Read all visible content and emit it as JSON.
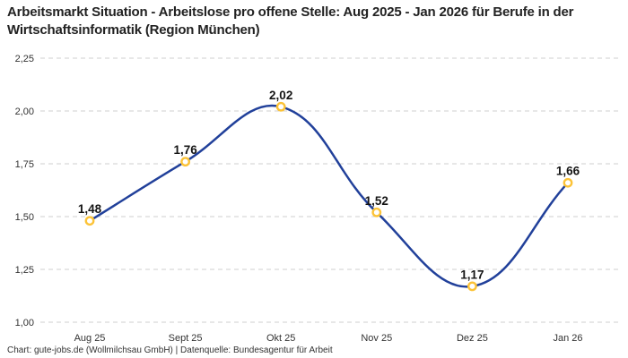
{
  "footer": "Chart: gute-jobs.de (Wollmilchsau GmbH) | Datenquelle: Bundesagentur für Arbeit",
  "colors": {
    "background": "#ffffff",
    "line": "#21409a",
    "marker_ring": "#fcc337",
    "marker_fill": "#ffffff",
    "grid": "#cfcfcf",
    "title_text": "#222222",
    "tick_text": "#333333",
    "data_label_text": "#141414"
  },
  "chart_data": {
    "type": "line",
    "title": "Arbeitsmarkt Situation - Arbeitslose pro offene Stelle: Aug 2025 - Jan 2026 für Berufe in der Wirtschaftsinformatik (Region München)",
    "categories": [
      "Aug 25",
      "Sept 25",
      "Okt 25",
      "Nov 25",
      "Dez 25",
      "Jan 26"
    ],
    "values": [
      1.48,
      1.76,
      2.02,
      1.52,
      1.17,
      1.66
    ],
    "value_labels": [
      "1,48",
      "1,76",
      "2,02",
      "1,52",
      "1,17",
      "1,66"
    ],
    "y_ticks": [
      {
        "value": 2.25,
        "label": "2,25"
      },
      {
        "value": 2.0,
        "label": "2,00"
      },
      {
        "value": 1.75,
        "label": "1,75"
      },
      {
        "value": 1.5,
        "label": "1,50"
      },
      {
        "value": 1.25,
        "label": "1,25"
      },
      {
        "value": 1.0,
        "label": "1,00"
      }
    ],
    "ylim": [
      1.0,
      2.25
    ],
    "xlabel": "",
    "ylabel": "",
    "legend": "none",
    "grid": "horizontal-dashed",
    "line_style": "smooth"
  }
}
